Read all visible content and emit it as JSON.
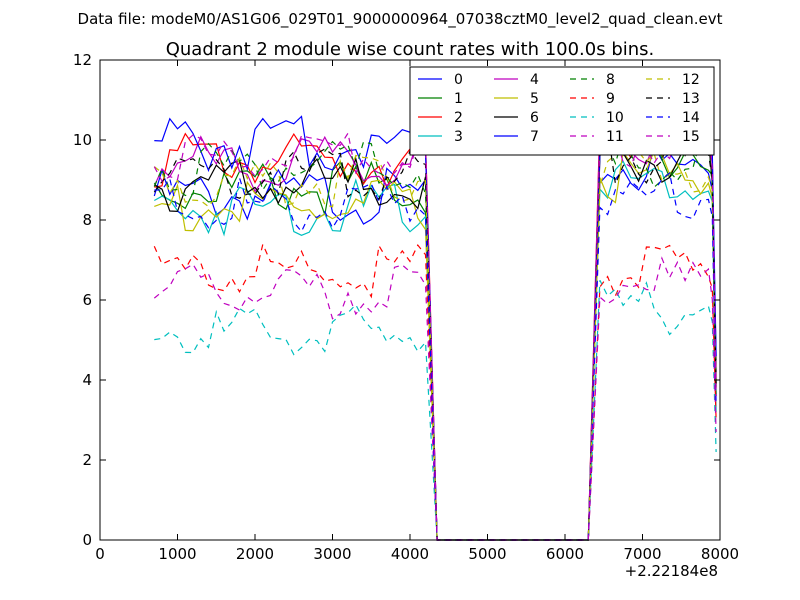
{
  "chart_data": {
    "type": "line",
    "suptitle": "Data file: modeM0/AS1G06_029T01_9000000964_07038cztM0_level2_quad_clean.evt",
    "title": "Quadrant 2 module wise count rates with 100.0s bins.",
    "xlabel": "",
    "ylabel": "",
    "x_offset_label": "+2.22184e8",
    "xlim": [
      0,
      8000
    ],
    "ylim": [
      0,
      12
    ],
    "x_ticks": [
      0,
      1000,
      2000,
      3000,
      4000,
      5000,
      6000,
      7000,
      8000
    ],
    "y_ticks": [
      0,
      2,
      4,
      6,
      8,
      10,
      12
    ],
    "grid": false,
    "legend_position": "top-right",
    "x_sample_points": [
      700,
      800,
      900,
      1000,
      1100,
      1200,
      1300,
      1400,
      1500,
      1600,
      1700,
      1800,
      1900,
      2000,
      2100,
      2200,
      2300,
      2400,
      2500,
      2600,
      2700,
      2800,
      2900,
      3000,
      3100,
      3200,
      3300,
      3400,
      3500,
      3600,
      3700,
      3800,
      3900,
      4000,
      4100,
      4200,
      4350,
      6300,
      6450,
      6550,
      6650,
      6750,
      6850,
      6950,
      7050,
      7150,
      7250,
      7350,
      7450,
      7550,
      7650,
      7750,
      7850,
      7900,
      7950
    ],
    "series": [
      {
        "name": "0",
        "color": "#0000ff",
        "dash": "solid",
        "level_first": 8.6,
        "level_second": 9.3,
        "end": 3.6
      },
      {
        "name": "1",
        "color": "#008000",
        "dash": "solid",
        "level_first": 8.8,
        "level_second": 9.7,
        "end": 4.5
      },
      {
        "name": "2",
        "color": "#ff0000",
        "dash": "solid",
        "level_first": 9.5,
        "level_second": 10.2,
        "end": 4.0
      },
      {
        "name": "3",
        "color": "#00bfbf",
        "dash": "solid",
        "level_first": 8.3,
        "level_second": 9.0,
        "end": 3.2
      },
      {
        "name": "4",
        "color": "#bf00bf",
        "dash": "solid",
        "level_first": 9.4,
        "level_second": 10.0,
        "end": 4.2
      },
      {
        "name": "5",
        "color": "#bfbf00",
        "dash": "solid",
        "level_first": 8.3,
        "level_second": 9.1,
        "end": 3.8
      },
      {
        "name": "6",
        "color": "#000000",
        "dash": "solid",
        "level_first": 8.9,
        "level_second": 9.5,
        "end": 3.9
      },
      {
        "name": "7",
        "color": "#0000ff",
        "dash": "solid",
        "level_first": 9.9,
        "level_second": 10.3,
        "end": 4.6
      },
      {
        "name": "8",
        "color": "#008000",
        "dash": "dashed",
        "level_first": 9.3,
        "level_second": 9.4,
        "end": 3.5
      },
      {
        "name": "9",
        "color": "#ff0000",
        "dash": "dashed",
        "level_first": 6.7,
        "level_second": 6.7,
        "end": 3.0
      },
      {
        "name": "10",
        "color": "#00bfbf",
        "dash": "dashed",
        "level_first": 5.2,
        "level_second": 5.8,
        "end": 2.2
      },
      {
        "name": "11",
        "color": "#bf00bf",
        "dash": "dashed",
        "level_first": 6.2,
        "level_second": 6.4,
        "end": 2.7
      },
      {
        "name": "12",
        "color": "#bfbf00",
        "dash": "dashed",
        "level_first": 9.0,
        "level_second": 9.3,
        "end": 3.6
      },
      {
        "name": "13",
        "color": "#000000",
        "dash": "dashed",
        "level_first": 9.2,
        "level_second": 9.6,
        "end": 3.8
      },
      {
        "name": "14",
        "color": "#0000ff",
        "dash": "dashed",
        "level_first": 8.4,
        "level_second": 8.6,
        "end": 3.4
      },
      {
        "name": "15",
        "color": "#bf00bf",
        "dash": "dashed",
        "level_first": 9.6,
        "level_second": 9.9,
        "end": 3.6
      }
    ]
  }
}
